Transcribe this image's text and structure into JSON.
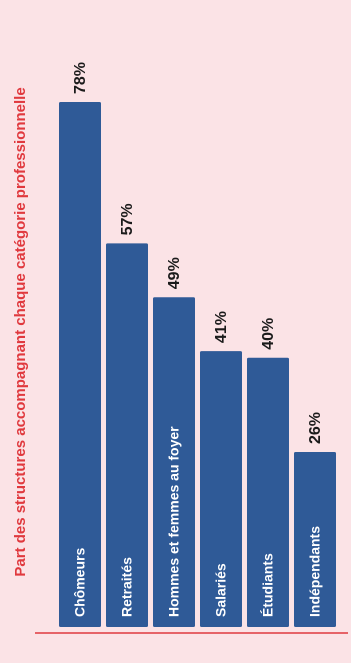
{
  "chart_data": {
    "type": "bar",
    "orientation": "vertical",
    "title": "Part des structures accompagnant chaque catégorie professionnelle",
    "categories": [
      "Chômeurs",
      "Retraités",
      "Hommes et femmes au foyer",
      "Salariés",
      "Étudiants",
      "Indépendants"
    ],
    "values": [
      78,
      57,
      49,
      41,
      40,
      26
    ],
    "value_labels": [
      "78%",
      "57%",
      "49%",
      "41%",
      "40%",
      "26%"
    ],
    "ylim": [
      0,
      100
    ],
    "grid": false,
    "legend": "none",
    "colors": {
      "background": "#fbe3e6",
      "bar": "#2f5a97",
      "title": "#e0393e",
      "baseline": "#e0393e",
      "value_text": "#1b1b1b",
      "bar_text": "#ffffff"
    }
  }
}
